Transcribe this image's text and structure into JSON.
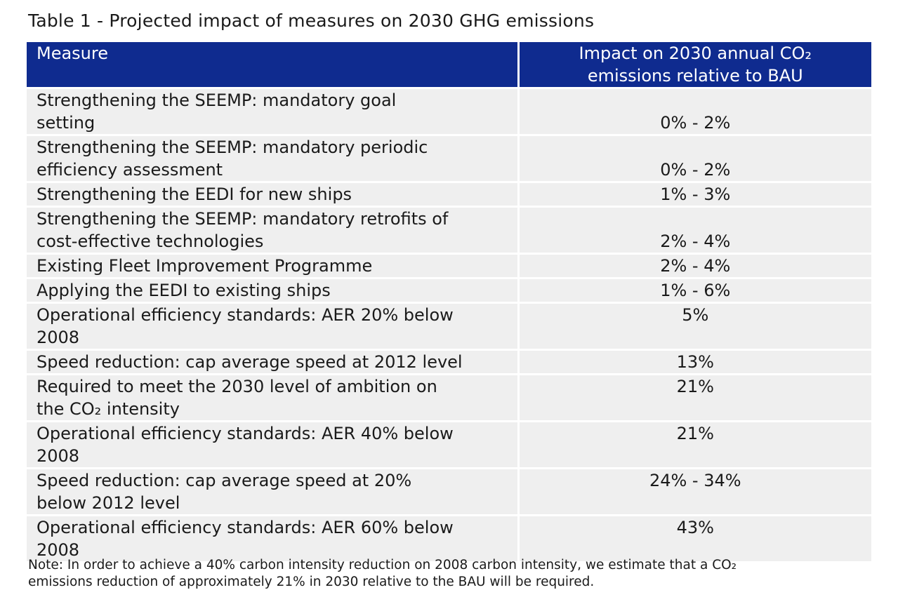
{
  "caption": "Table 1 - Projected impact of measures on 2030 GHG emissions",
  "table": {
    "headers": {
      "measure": "Measure",
      "impact_line1": "Impact on 2030 annual CO₂",
      "impact_line2": "emissions relative to BAU"
    },
    "rows": [
      {
        "measure": [
          "Strengthening the SEEMP: mandatory goal",
          "setting"
        ],
        "impact": "0% - 2%",
        "align": "bottom"
      },
      {
        "measure": [
          "Strengthening the SEEMP: mandatory periodic",
          "efficiency assessment"
        ],
        "impact": "0% - 2%",
        "align": "bottom"
      },
      {
        "measure": [
          "Strengthening the EEDI for new ships"
        ],
        "impact": "1% - 3%",
        "align": "top"
      },
      {
        "measure": [
          "Strengthening the SEEMP: mandatory retrofits of",
          "cost-effective technologies"
        ],
        "impact": "2% - 4%",
        "align": "bottom"
      },
      {
        "measure": [
          "Existing Fleet Improvement Programme"
        ],
        "impact": "2% - 4%",
        "align": "top"
      },
      {
        "measure": [
          "Applying the EEDI to existing ships"
        ],
        "impact": "1% - 6%",
        "align": "top"
      },
      {
        "measure": [
          "Operational efficiency standards: AER 20% below",
          "2008"
        ],
        "impact": "5%",
        "align": "top"
      },
      {
        "measure": [
          "Speed reduction: cap average speed at 2012 level"
        ],
        "impact": "13%",
        "align": "top"
      },
      {
        "measure": [
          "Required to meet the 2030 level of ambition on",
          "the CO₂ intensity"
        ],
        "impact": "21%",
        "align": "top"
      },
      {
        "measure": [
          "Operational efficiency standards: AER 40% below",
          "2008"
        ],
        "impact": "21%",
        "align": "top"
      },
      {
        "measure": [
          "Speed reduction: cap average speed at 20%",
          "below 2012 level"
        ],
        "impact": "24% - 34%",
        "align": "top"
      },
      {
        "measure": [
          "Operational efficiency standards: AER 60% below",
          "2008"
        ],
        "impact": "43%",
        "align": "top"
      }
    ]
  },
  "note": {
    "line1": "Note: In order to achieve a 40% carbon intensity reduction on 2008 carbon intensity, we estimate that a CO₂",
    "line2": "emissions reduction of approximately 21% in 2030 relative to the BAU will be required."
  }
}
